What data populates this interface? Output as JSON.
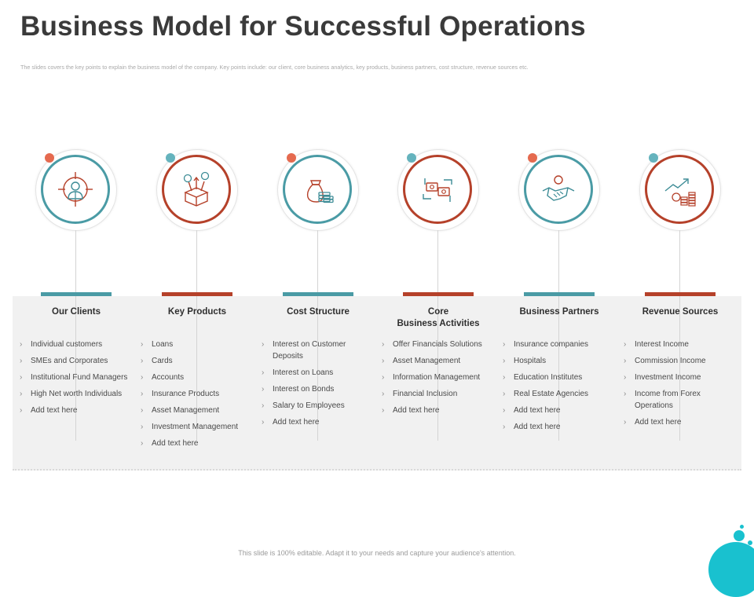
{
  "title": "Business Model for Successful Operations",
  "subtitle": "The slides covers the key points to explain the business model of the company. Key points include: our client, core business analytics, key products, business partners, cost structure,  revenue sources etc.",
  "columns": [
    {
      "title_lines": [
        "Our Clients"
      ],
      "icon": "target-person-icon",
      "ring_color": "#4a9ba5",
      "dot_color": "#e56a4f",
      "items": [
        "Individual customers",
        "SMEs and Corporates",
        "Institutional Fund Managers",
        "High Net worth Individuals",
        "Add text here"
      ]
    },
    {
      "title_lines": [
        "Key Products"
      ],
      "icon": "product-box-icon",
      "ring_color": "#b5412a",
      "dot_color": "#65b3bd",
      "items": [
        "Loans",
        "Cards",
        "Accounts",
        "Insurance Products",
        "Asset Management",
        "Investment Management",
        "Add text here"
      ]
    },
    {
      "title_lines": [
        "Cost Structure"
      ],
      "icon": "money-bag-coins-icon",
      "ring_color": "#4a9ba5",
      "dot_color": "#e56a4f",
      "items": [
        "Interest on Customer Deposits",
        "Interest on Loans",
        "Interest on Bonds",
        "Salary to Employees",
        "Add text here"
      ]
    },
    {
      "title_lines": [
        "Core",
        "Business Activities"
      ],
      "icon": "money-exchange-icon",
      "ring_color": "#b5412a",
      "dot_color": "#65b3bd",
      "items": [
        "Offer Financials Solutions",
        "Asset Management",
        "Information Management",
        "Financial Inclusion",
        "Add text here"
      ]
    },
    {
      "title_lines": [
        "Business Partners"
      ],
      "icon": "handshake-icon",
      "ring_color": "#4a9ba5",
      "dot_color": "#e56a4f",
      "items": [
        "Insurance companies",
        "Hospitals",
        "Education Institutes",
        "Real Estate Agencies",
        "Add text here",
        "Add text here"
      ]
    },
    {
      "title_lines": [
        "Revenue Sources"
      ],
      "icon": "growth-coins-icon",
      "ring_color": "#b5412a",
      "dot_color": "#65b3bd",
      "items": [
        "Interest Income",
        "Commission Income",
        "Investment Income",
        "Income from Forex Operations",
        "Add text here"
      ]
    }
  ],
  "footer": "This slide is 100% editable.  Adapt it to your needs and capture your audience's attention."
}
